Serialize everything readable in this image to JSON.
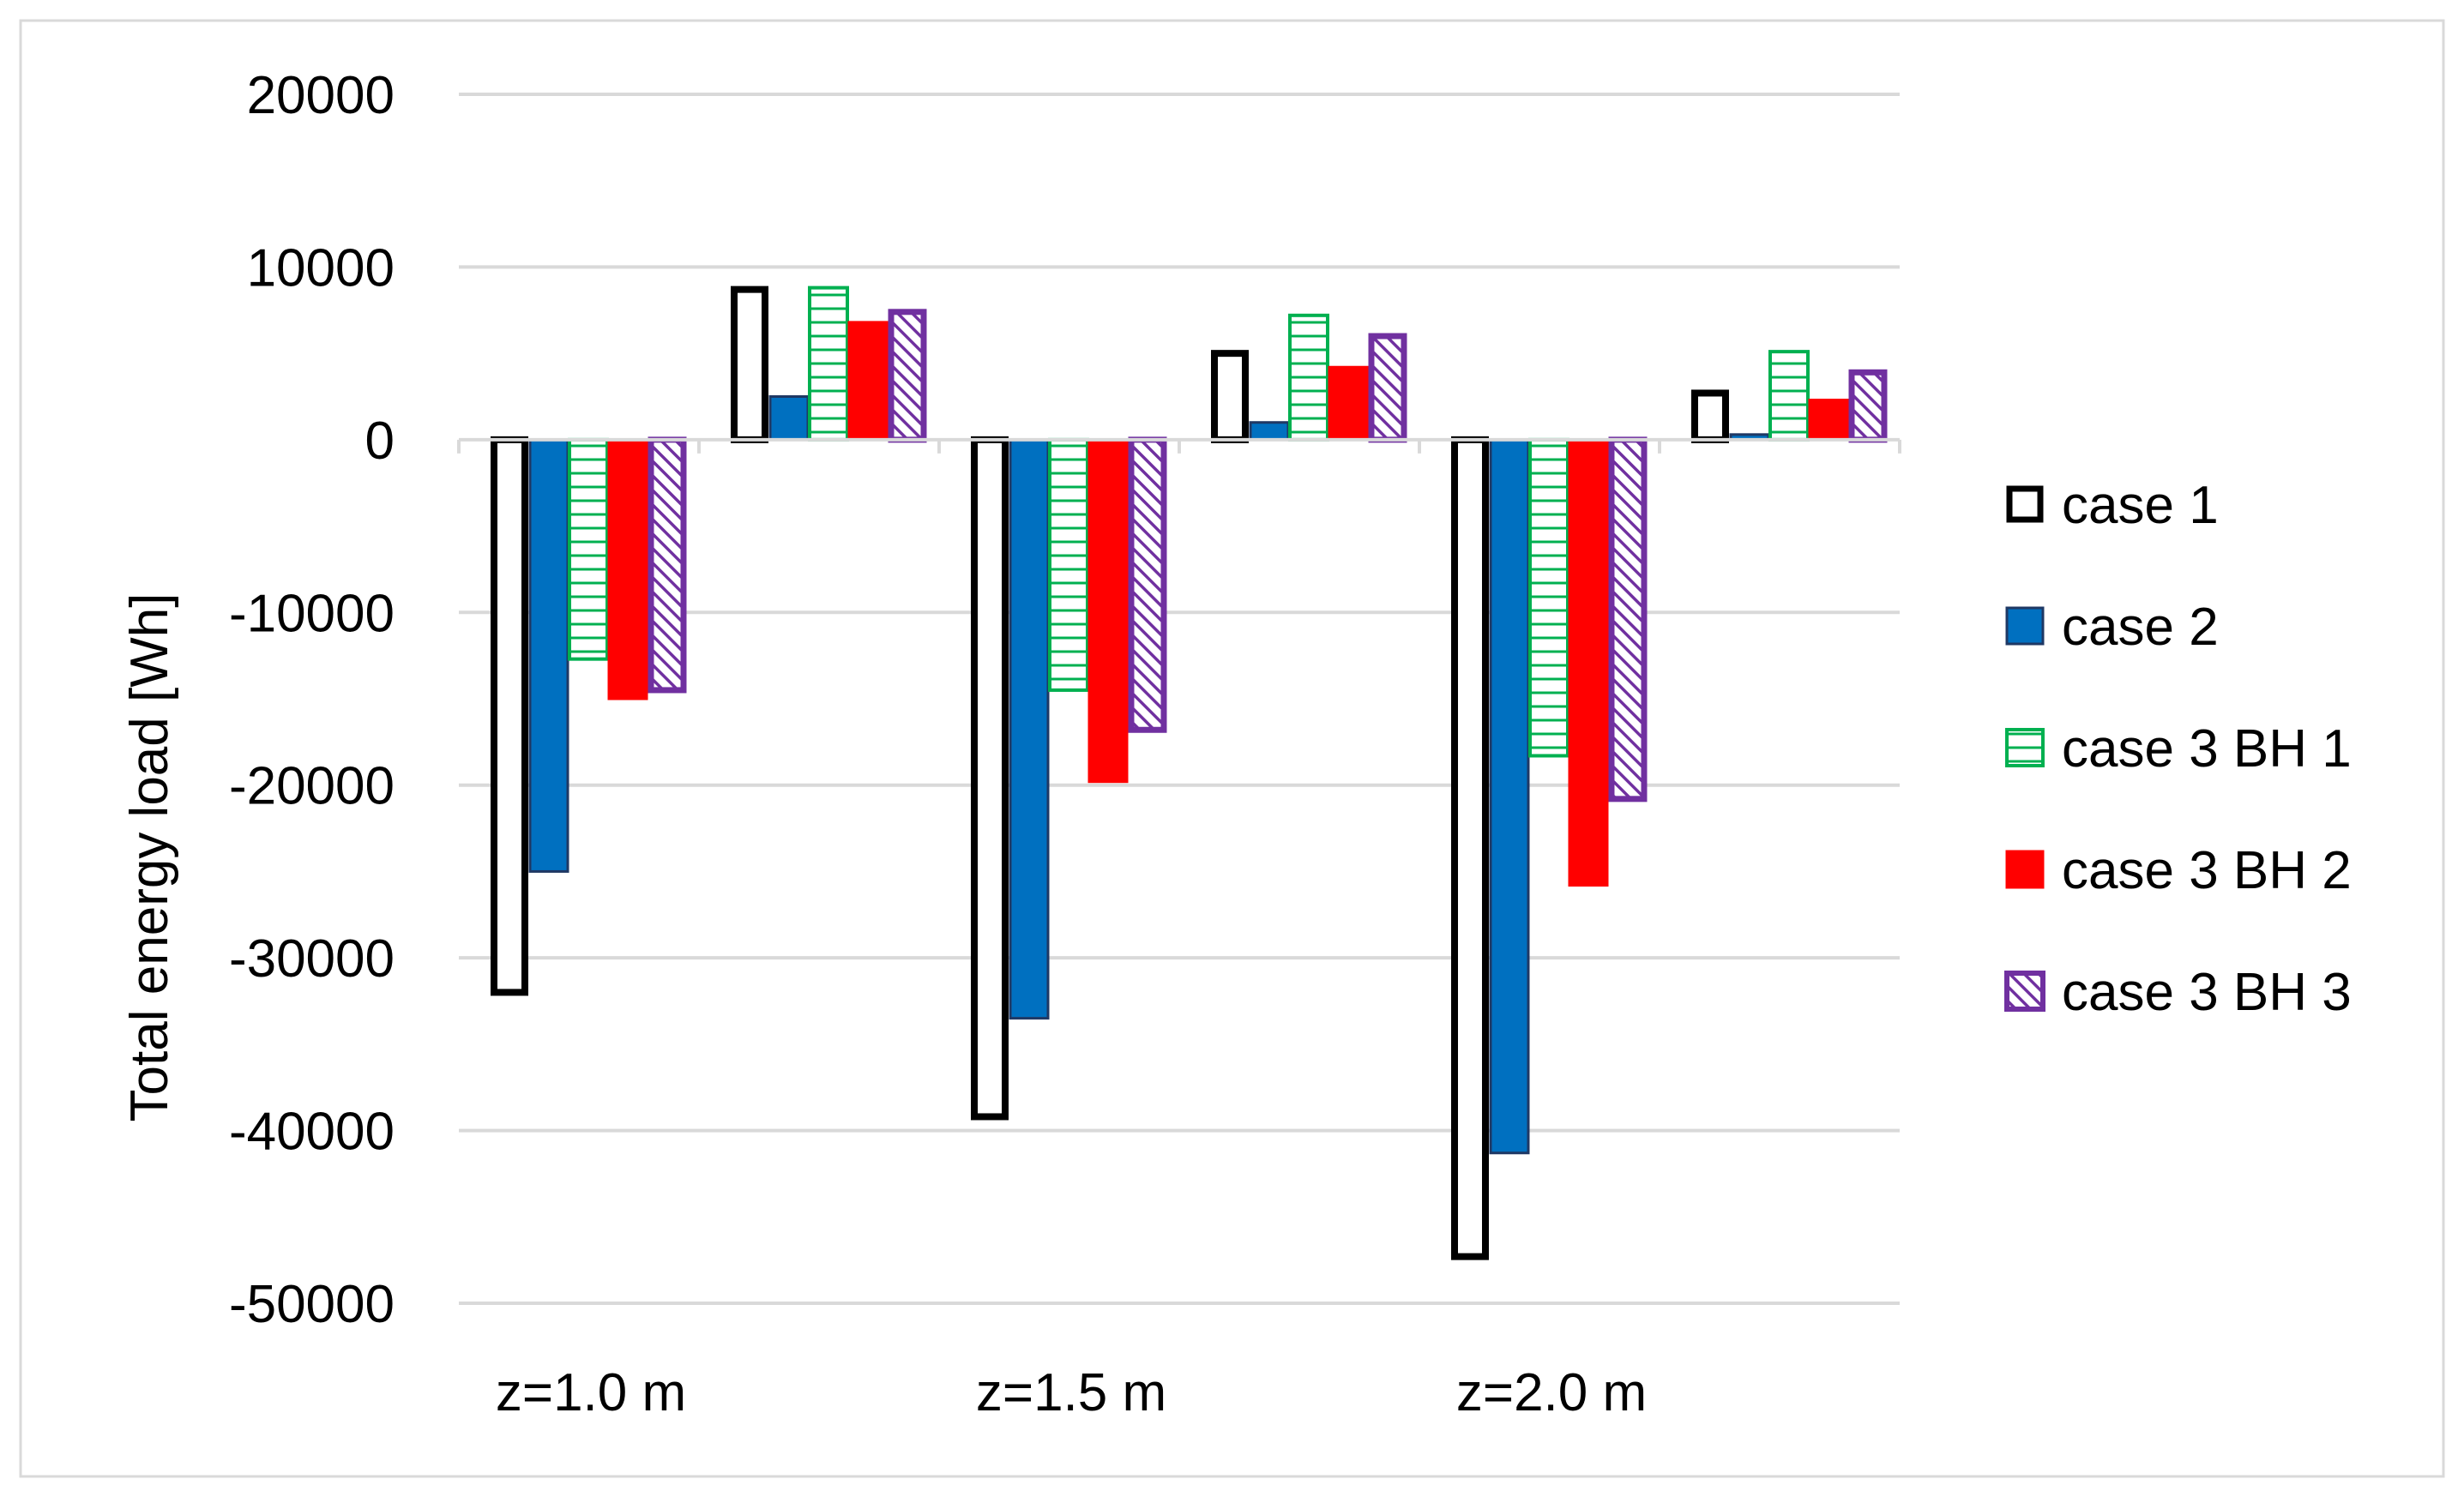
{
  "chart_data": {
    "type": "bar",
    "title": "",
    "xlabel": "",
    "ylabel": "Total energy load [Wh]",
    "ylim": [
      -50000,
      20000
    ],
    "ytick_step": 10000,
    "yticks": [
      "20000",
      "10000",
      "0",
      "-10000",
      "-20000",
      "-30000",
      "-40000",
      "-50000"
    ],
    "grid": true,
    "legend_position": "right",
    "category_labels": [
      "z=1.0 m",
      "z=1.5 m",
      "z=2.0 m"
    ],
    "categories": [
      "z=1.0 m negative",
      "z=1.0 m positive",
      "z=1.5 m negative",
      "z=1.5 m positive",
      "z=2.0 m negative",
      "z=2.0 m positive"
    ],
    "series": [
      {
        "name": "case 1",
        "style": "outline",
        "color": "#000000",
        "values": [
          -32000,
          8700,
          -39200,
          5000,
          -47300,
          2700
        ]
      },
      {
        "name": "case 2",
        "style": "solid",
        "color": "#0070C0",
        "values": [
          -25000,
          2500,
          -33500,
          1000,
          -41300,
          300
        ]
      },
      {
        "name": "case 3 BH 1",
        "style": "hlines",
        "color": "#00B050",
        "values": [
          -12700,
          8800,
          -14500,
          7200,
          -18300,
          5100
        ]
      },
      {
        "name": "case 3 BH 2",
        "style": "solid",
        "color": "#FF0000",
        "values": [
          -15000,
          6800,
          -19800,
          4200,
          -25800,
          2300
        ]
      },
      {
        "name": "case 3 BH 3",
        "style": "diag",
        "color": "#7030A0",
        "values": [
          -14500,
          7400,
          -16800,
          6000,
          -20800,
          3900
        ]
      }
    ]
  }
}
